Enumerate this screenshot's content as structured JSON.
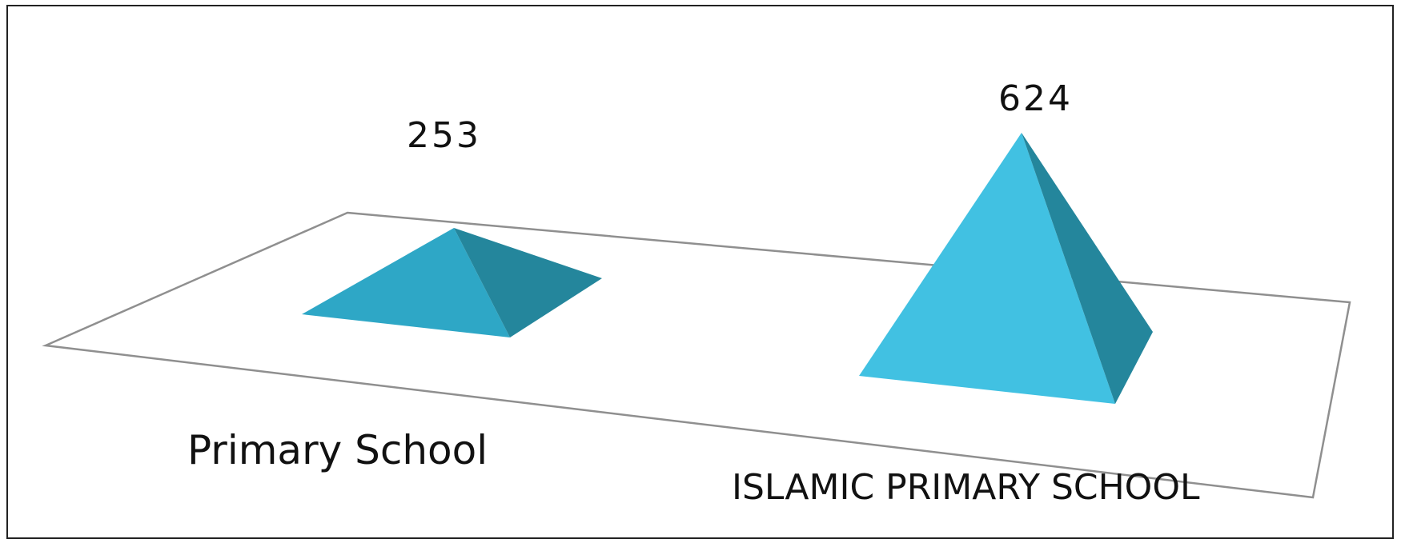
{
  "chart_data": {
    "type": "bar",
    "shape": "pyramid-3d",
    "categories": [
      "Primary School",
      "ISLAMIC PRIMARY SCHOOL"
    ],
    "values": [
      253,
      624
    ],
    "title": "",
    "xlabel": "",
    "ylabel": "",
    "grid": false,
    "legend": false,
    "colors": {
      "front_face_left": "#2ea7c6",
      "front_face_right": "#41c1e2",
      "side_face": "#24869c",
      "floor_stroke": "#8f8f8f",
      "frame_stroke": "#222222"
    }
  }
}
